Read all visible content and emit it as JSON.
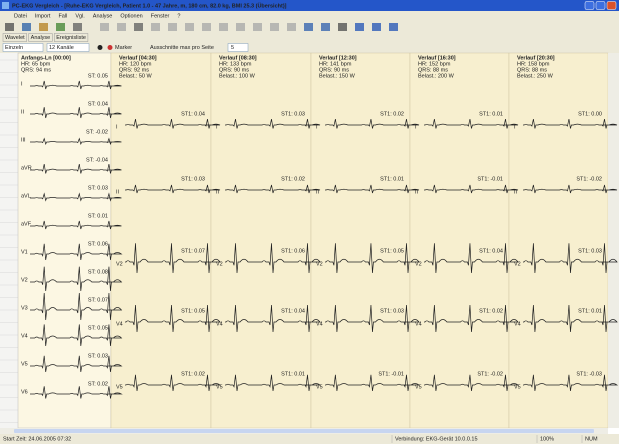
{
  "window": {
    "title": "PC-EKG Vergleich - [Ruhe-EKG Vergleich, Patient 1.0 - 47 Jahre, m, 180 cm, 82.0 kg, BMI 25.3 (Übersicht)]",
    "menu": [
      "Datei",
      "Import",
      "Fall",
      "Vgl.",
      "Analyse",
      "Optionen",
      "Fenster",
      "?"
    ],
    "tabs": [
      "Wavelet",
      "Analyse",
      "Ereignisliste"
    ],
    "controls": {
      "mode": "Einzeln",
      "channels": "12 Kanäle",
      "marker": "Marker",
      "per_page_label": "Ausschnitte max pro Seite",
      "per_page": "5"
    },
    "status": [
      "Start Zeit: 24.06.2005 07:32",
      "Verbindung: EKG-Gerät 10.0.0.15",
      "100%",
      "NUM"
    ]
  },
  "baseline": {
    "header": [
      "Anfangs-Ln [00:00]",
      "HR: 65 bpm",
      "QRS: 94 ms"
    ],
    "leads": [
      {
        "label": "I",
        "value": "ST: 0.05"
      },
      {
        "label": "II",
        "value": "ST: 0.04"
      },
      {
        "label": "III",
        "value": "ST: -0.02"
      },
      {
        "label": "aVR",
        "value": "ST: -0.04"
      },
      {
        "label": "aVL",
        "value": "ST: 0.03"
      },
      {
        "label": "aVF",
        "value": "ST: 0.01"
      },
      {
        "label": "V1",
        "value": "ST: 0.06"
      },
      {
        "label": "V2",
        "value": "ST: 0.08"
      },
      {
        "label": "V3",
        "value": "ST: 0.07"
      },
      {
        "label": "V4",
        "value": "ST: 0.05"
      },
      {
        "label": "V5",
        "value": "ST: 0.03"
      },
      {
        "label": "V6",
        "value": "ST: 0.02"
      }
    ]
  },
  "columns": [
    {
      "header": [
        "Verlauf [04:30]",
        "HR: 120 bpm",
        "QRS: 92 ms",
        "Belast.: 50 W"
      ],
      "leads": [
        {
          "label": "I",
          "value": "ST1: 0.04"
        },
        {
          "label": "II",
          "value": "ST1: 0.03"
        },
        {
          "label": "V2",
          "value": "ST1: 0.07"
        },
        {
          "label": "V4",
          "value": "ST1: 0.05"
        },
        {
          "label": "V5",
          "value": "ST1: 0.02"
        }
      ]
    },
    {
      "header": [
        "Verlauf [08:30]",
        "HR: 133 bpm",
        "QRS: 90 ms",
        "Belast.: 100 W"
      ],
      "leads": [
        {
          "label": "I",
          "value": "ST1: 0.03"
        },
        {
          "label": "II",
          "value": "ST1: 0.02"
        },
        {
          "label": "V2",
          "value": "ST1: 0.06"
        },
        {
          "label": "V4",
          "value": "ST1: 0.04"
        },
        {
          "label": "V5",
          "value": "ST1: 0.01"
        }
      ]
    },
    {
      "header": [
        "Verlauf [12:30]",
        "HR: 141 bpm",
        "QRS: 90 ms",
        "Belast.: 150 W"
      ],
      "leads": [
        {
          "label": "I",
          "value": "ST1: 0.02"
        },
        {
          "label": "II",
          "value": "ST1: 0.01"
        },
        {
          "label": "V2",
          "value": "ST1: 0.05"
        },
        {
          "label": "V4",
          "value": "ST1: 0.03"
        },
        {
          "label": "V5",
          "value": "ST1: -0.01"
        }
      ]
    },
    {
      "header": [
        "Verlauf [16:30]",
        "HR: 152 bpm",
        "QRS: 88 ms",
        "Belast.: 200 W"
      ],
      "leads": [
        {
          "label": "I",
          "value": "ST1: 0.01"
        },
        {
          "label": "II",
          "value": "ST1: -0.01"
        },
        {
          "label": "V2",
          "value": "ST1: 0.04"
        },
        {
          "label": "V4",
          "value": "ST1: 0.02"
        },
        {
          "label": "V5",
          "value": "ST1: -0.02"
        }
      ]
    },
    {
      "header": [
        "Verlauf [20:30]",
        "HR: 158 bpm",
        "QRS: 88 ms",
        "Belast.: 250 W"
      ],
      "leads": [
        {
          "label": "I",
          "value": "ST1: 0.00"
        },
        {
          "label": "II",
          "value": "ST1: -0.02"
        },
        {
          "label": "V2",
          "value": "ST1: 0.03"
        },
        {
          "label": "V4",
          "value": "ST1: 0.01"
        },
        {
          "label": "V5",
          "value": "ST1: -0.03"
        }
      ]
    }
  ]
}
